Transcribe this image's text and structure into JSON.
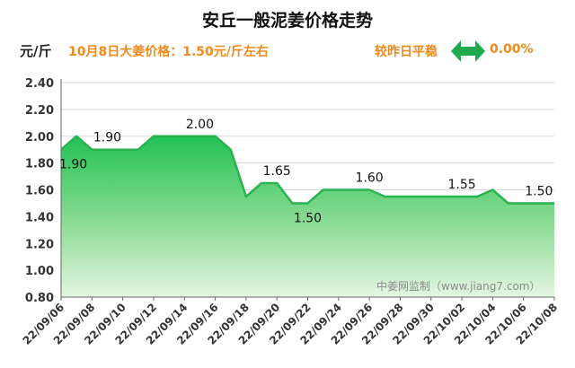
{
  "header": {
    "title": "安丘一般泥姜价格走势",
    "unit": "元/斤",
    "price_note": "10月8日大姜价格：1.50元/斤左右",
    "compare_label": "较昨日平稳",
    "compare_value": "0.00%",
    "compare_icon": "double-arrow-icon",
    "accent_color": "#f08a1c",
    "icon_color": "#1faa4e"
  },
  "watermark": "中姜网监制（www.jiang7.com）",
  "chart_data": {
    "type": "area",
    "x": [
      "22/09/06",
      "22/09/07",
      "22/09/08",
      "22/09/09",
      "22/09/10",
      "22/09/11",
      "22/09/12",
      "22/09/13",
      "22/09/14",
      "22/09/15",
      "22/09/16",
      "22/09/17",
      "22/09/18",
      "22/09/19",
      "22/09/20",
      "22/09/21",
      "22/09/22",
      "22/09/23",
      "22/09/24",
      "22/09/25",
      "22/09/26",
      "22/09/27",
      "22/09/28",
      "22/09/29",
      "22/09/30",
      "22/10/01",
      "22/10/02",
      "22/10/03",
      "22/10/04",
      "22/10/05",
      "22/10/06",
      "22/10/07",
      "22/10/08"
    ],
    "series": [
      {
        "values": [
          1.9,
          2.0,
          1.9,
          1.9,
          1.9,
          1.9,
          2.0,
          2.0,
          2.0,
          2.0,
          2.0,
          1.9,
          1.55,
          1.65,
          1.65,
          1.5,
          1.5,
          1.6,
          1.6,
          1.6,
          1.6,
          1.55,
          1.55,
          1.55,
          1.55,
          1.55,
          1.55,
          1.55,
          1.6,
          1.5,
          1.5,
          1.5,
          1.5
        ],
        "color": "#2ab24f"
      }
    ],
    "xtick_labels": [
      "22/09/06",
      "22/09/08",
      "22/09/10",
      "22/09/12",
      "22/09/14",
      "22/09/16",
      "22/09/18",
      "22/09/20",
      "22/09/22",
      "22/09/24",
      "22/09/26",
      "22/09/28",
      "22/09/30",
      "22/10/02",
      "22/10/04",
      "22/10/06",
      "22/10/08"
    ],
    "ytick_labels": [
      "0.80",
      "1.00",
      "1.20",
      "1.40",
      "1.60",
      "1.80",
      "2.00",
      "2.20",
      "2.40"
    ],
    "ylim": [
      0.8,
      2.4
    ],
    "grid": true,
    "data_labels": [
      {
        "x": "22/09/06",
        "text": "1.90",
        "pos": "below"
      },
      {
        "x": "22/09/09",
        "text": "1.90",
        "pos": "above"
      },
      {
        "x": "22/09/15",
        "text": "2.00",
        "pos": "above"
      },
      {
        "x": "22/09/20",
        "text": "1.65",
        "pos": "above"
      },
      {
        "x": "22/09/22",
        "text": "1.50",
        "pos": "below"
      },
      {
        "x": "22/09/26",
        "text": "1.60",
        "pos": "above"
      },
      {
        "x": "22/10/02",
        "text": "1.55",
        "pos": "above"
      },
      {
        "x": "22/10/07",
        "text": "1.50",
        "pos": "above"
      }
    ]
  }
}
